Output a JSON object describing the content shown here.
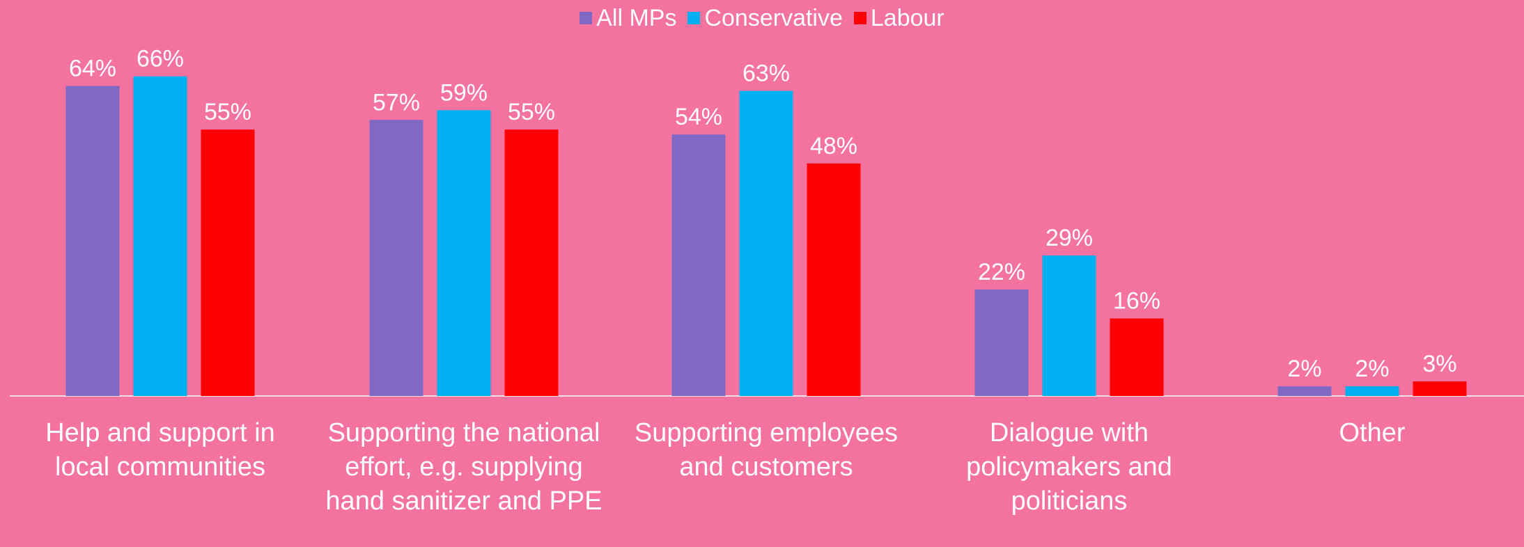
{
  "chart_data": {
    "type": "bar",
    "categories": [
      "Help and support in local communities",
      "Supporting the national effort, e.g. supplying hand sanitizer and PPE",
      "Supporting employees and customers",
      "Dialogue with policymakers and politicians",
      "Other"
    ],
    "series": [
      {
        "name": "All MPs",
        "color": "#7F69C4",
        "values": [
          64,
          57,
          54,
          22,
          2
        ]
      },
      {
        "name": "Conservative",
        "color": "#00B0F0",
        "values": [
          66,
          59,
          63,
          29,
          2
        ]
      },
      {
        "name": "Labour",
        "color": "#FF0000",
        "values": [
          55,
          55,
          48,
          16,
          3
        ]
      }
    ],
    "value_suffix": "%",
    "ylim": [
      0,
      70
    ],
    "legend_position": "top-center",
    "grid": false,
    "background_color": "#F472A0"
  }
}
